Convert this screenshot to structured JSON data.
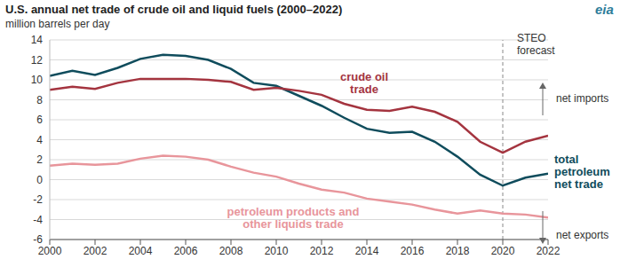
{
  "chart_data": {
    "type": "line",
    "title": "U.S. annual net trade of crude oil and liquid fuels (2000–2022)",
    "subtitle": "million barrels per day",
    "logo": "eia",
    "x": [
      2000,
      2001,
      2002,
      2003,
      2004,
      2005,
      2006,
      2007,
      2008,
      2009,
      2010,
      2011,
      2012,
      2013,
      2014,
      2015,
      2016,
      2017,
      2018,
      2019,
      2020,
      2021,
      2022
    ],
    "series": [
      {
        "name": "total petroleum net trade",
        "color": "#0f4c5c",
        "values": [
          10.4,
          10.9,
          10.5,
          11.2,
          12.1,
          12.5,
          12.4,
          12.0,
          11.1,
          9.7,
          9.4,
          8.4,
          7.4,
          6.2,
          5.1,
          4.7,
          4.8,
          3.8,
          2.3,
          0.5,
          -0.6,
          0.2,
          0.6
        ]
      },
      {
        "name": "crude oil trade",
        "color": "#a4343f",
        "values": [
          9.0,
          9.3,
          9.1,
          9.7,
          10.1,
          10.1,
          10.1,
          10.0,
          9.8,
          9.0,
          9.2,
          8.9,
          8.5,
          7.6,
          7.0,
          6.9,
          7.3,
          6.8,
          5.8,
          3.8,
          2.7,
          3.8,
          4.4
        ]
      },
      {
        "name": "petroleum products and other liquids trade",
        "color": "#e8959b",
        "values": [
          1.4,
          1.6,
          1.5,
          1.6,
          2.1,
          2.4,
          2.3,
          2.0,
          1.3,
          0.7,
          0.3,
          -0.4,
          -1.0,
          -1.3,
          -1.9,
          -2.2,
          -2.5,
          -3.0,
          -3.4,
          -3.1,
          -3.4,
          -3.5,
          -3.8
        ]
      }
    ],
    "xlim": [
      2000,
      2022
    ],
    "xticks": [
      2000,
      2002,
      2004,
      2006,
      2008,
      2010,
      2012,
      2014,
      2016,
      2018,
      2020,
      2022
    ],
    "ylim": [
      -6,
      14
    ],
    "yticks": [
      -6,
      -4,
      -2,
      0,
      2,
      4,
      6,
      8,
      10,
      12,
      14
    ],
    "grid": true,
    "annotations": [
      {
        "text": "STEO forecast",
        "x": 2020
      },
      {
        "text": "net imports"
      },
      {
        "text": "net exports"
      }
    ]
  }
}
